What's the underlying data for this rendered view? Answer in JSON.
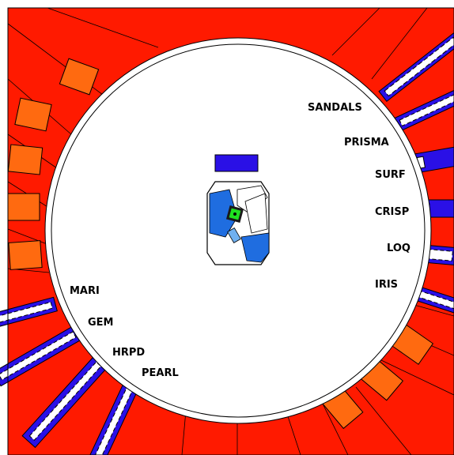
{
  "colors": {
    "shielding": "#ff1a00",
    "block": "#ff6a10",
    "beamline": "#2a10e6",
    "hall": "#ffffff",
    "target_blue": "#1f6de0",
    "target_green": "#1fe020",
    "edge": "#000000"
  },
  "instruments": [
    {
      "id": "sandals",
      "label": "SANDALS"
    },
    {
      "id": "prisma",
      "label": "PRISMA"
    },
    {
      "id": "surf",
      "label": "SURF"
    },
    {
      "id": "crisp",
      "label": "CRISP"
    },
    {
      "id": "loq",
      "label": "LOQ"
    },
    {
      "id": "iris",
      "label": "IRIS"
    },
    {
      "id": "mari",
      "label": "MARI"
    },
    {
      "id": "gem",
      "label": "GEM"
    },
    {
      "id": "hrpd",
      "label": "HRPD"
    },
    {
      "id": "pearl",
      "label": "PEARL"
    }
  ]
}
